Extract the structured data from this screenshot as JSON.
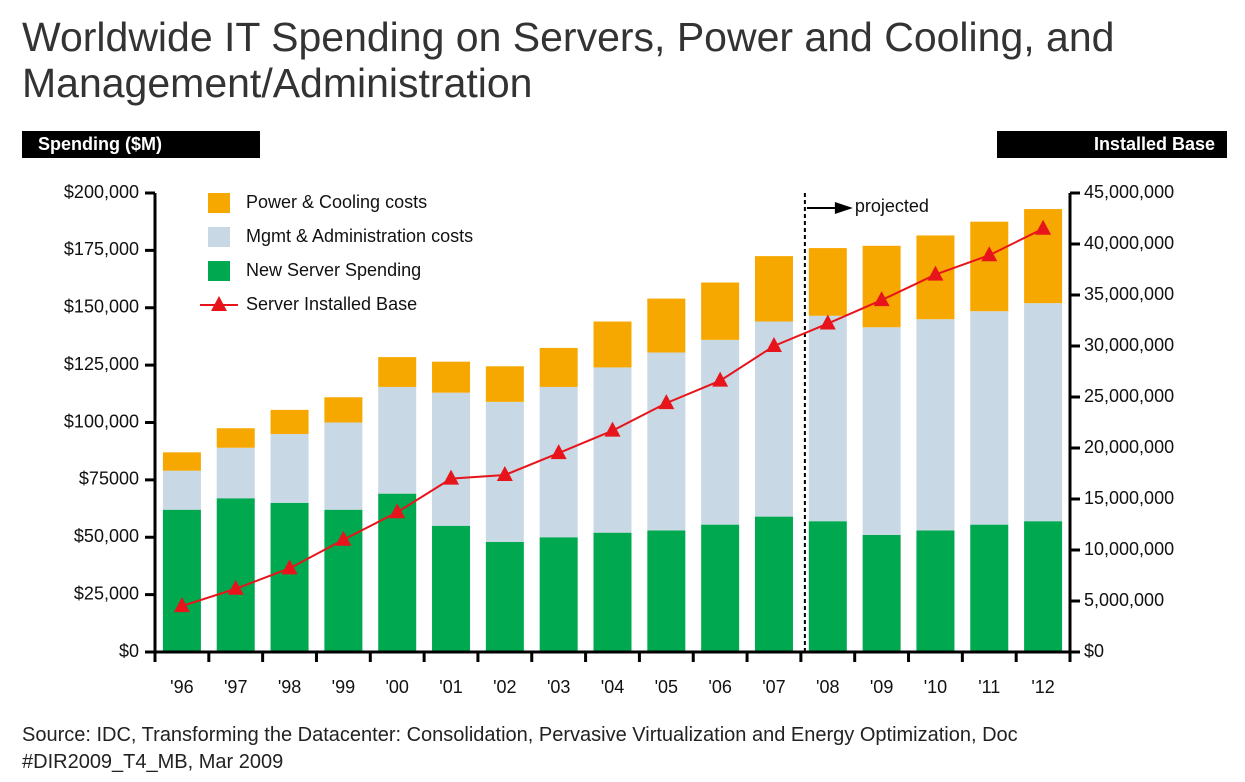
{
  "chart_data": {
    "type": "stacked_bar_line",
    "title": "Worldwide IT Spending on Servers, Power and Cooling, and Management/Administration",
    "y_label": "Spending ($M)",
    "y2_label": "Installed Base",
    "annotation": "projected",
    "source": "Source: IDC, Transforming the Datacenter: Consolidation, Pervasive Virtualization and Energy Optimization, Doc #DIR2009_T4_MB, Mar 2009",
    "categories": [
      "'96",
      "'97",
      "'98",
      "'99",
      "'00",
      "'01",
      "'02",
      "'03",
      "'04",
      "'05",
      "'06",
      "'07",
      "'08",
      "'09",
      "'10",
      "'11",
      "'12"
    ],
    "series": [
      {
        "name": "New Server Spending",
        "color": "#00a94f",
        "values": [
          62000,
          67000,
          65000,
          62000,
          69000,
          55000,
          48000,
          50000,
          52000,
          53000,
          55500,
          59000,
          57000,
          51000,
          53000,
          55500,
          57000
        ]
      },
      {
        "name": "Mgmt & Administration costs",
        "color": "#c8d8e4",
        "values": [
          17000,
          22000,
          30000,
          38000,
          46500,
          58000,
          61000,
          65500,
          72000,
          77500,
          80500,
          85000,
          89500,
          90500,
          92000,
          93000,
          95000
        ]
      },
      {
        "name": "Power & Cooling costs",
        "color": "#f7a800",
        "values": [
          8000,
          8500,
          10500,
          11000,
          13000,
          13500,
          15500,
          17000,
          20000,
          23500,
          25000,
          28500,
          29500,
          35500,
          36500,
          39000,
          41000
        ]
      },
      {
        "name": "Server Installed Base",
        "color": "#e8141c",
        "axis": "y2",
        "values": [
          4500000,
          6200000,
          8200000,
          11000000,
          13700000,
          17000000,
          17350000,
          19500000,
          21700000,
          24400000,
          26600000,
          30000000,
          32200000,
          34500000,
          37000000,
          38900000,
          41500000
        ]
      }
    ],
    "ylim": [
      0,
      200000
    ],
    "yticks": [
      {
        "value": 0,
        "label": "$0"
      },
      {
        "value": 25000,
        "label": "$25,000"
      },
      {
        "value": 50000,
        "label": "$50,000"
      },
      {
        "value": 75000,
        "label": "$75000"
      },
      {
        "value": 100000,
        "label": "$100,000"
      },
      {
        "value": 125000,
        "label": "$125,000"
      },
      {
        "value": 150000,
        "label": "$150,000"
      },
      {
        "value": 175000,
        "label": "$175,000"
      },
      {
        "value": 200000,
        "label": "$200,000"
      }
    ],
    "y2lim": [
      0,
      45000000
    ],
    "y2ticks": [
      {
        "value": 0,
        "label": "$0"
      },
      {
        "value": 5000000,
        "label": "5,000,000"
      },
      {
        "value": 10000000,
        "label": "10,000,000"
      },
      {
        "value": 15000000,
        "label": "15,000,000"
      },
      {
        "value": 20000000,
        "label": "20,000,000"
      },
      {
        "value": 25000000,
        "label": "25,000,000"
      },
      {
        "value": 30000000,
        "label": "30,000,000"
      },
      {
        "value": 35000000,
        "label": "35,000,000"
      },
      {
        "value": 40000000,
        "label": "40,000,000"
      },
      {
        "value": 45000000,
        "label": "45,000,000"
      }
    ]
  }
}
